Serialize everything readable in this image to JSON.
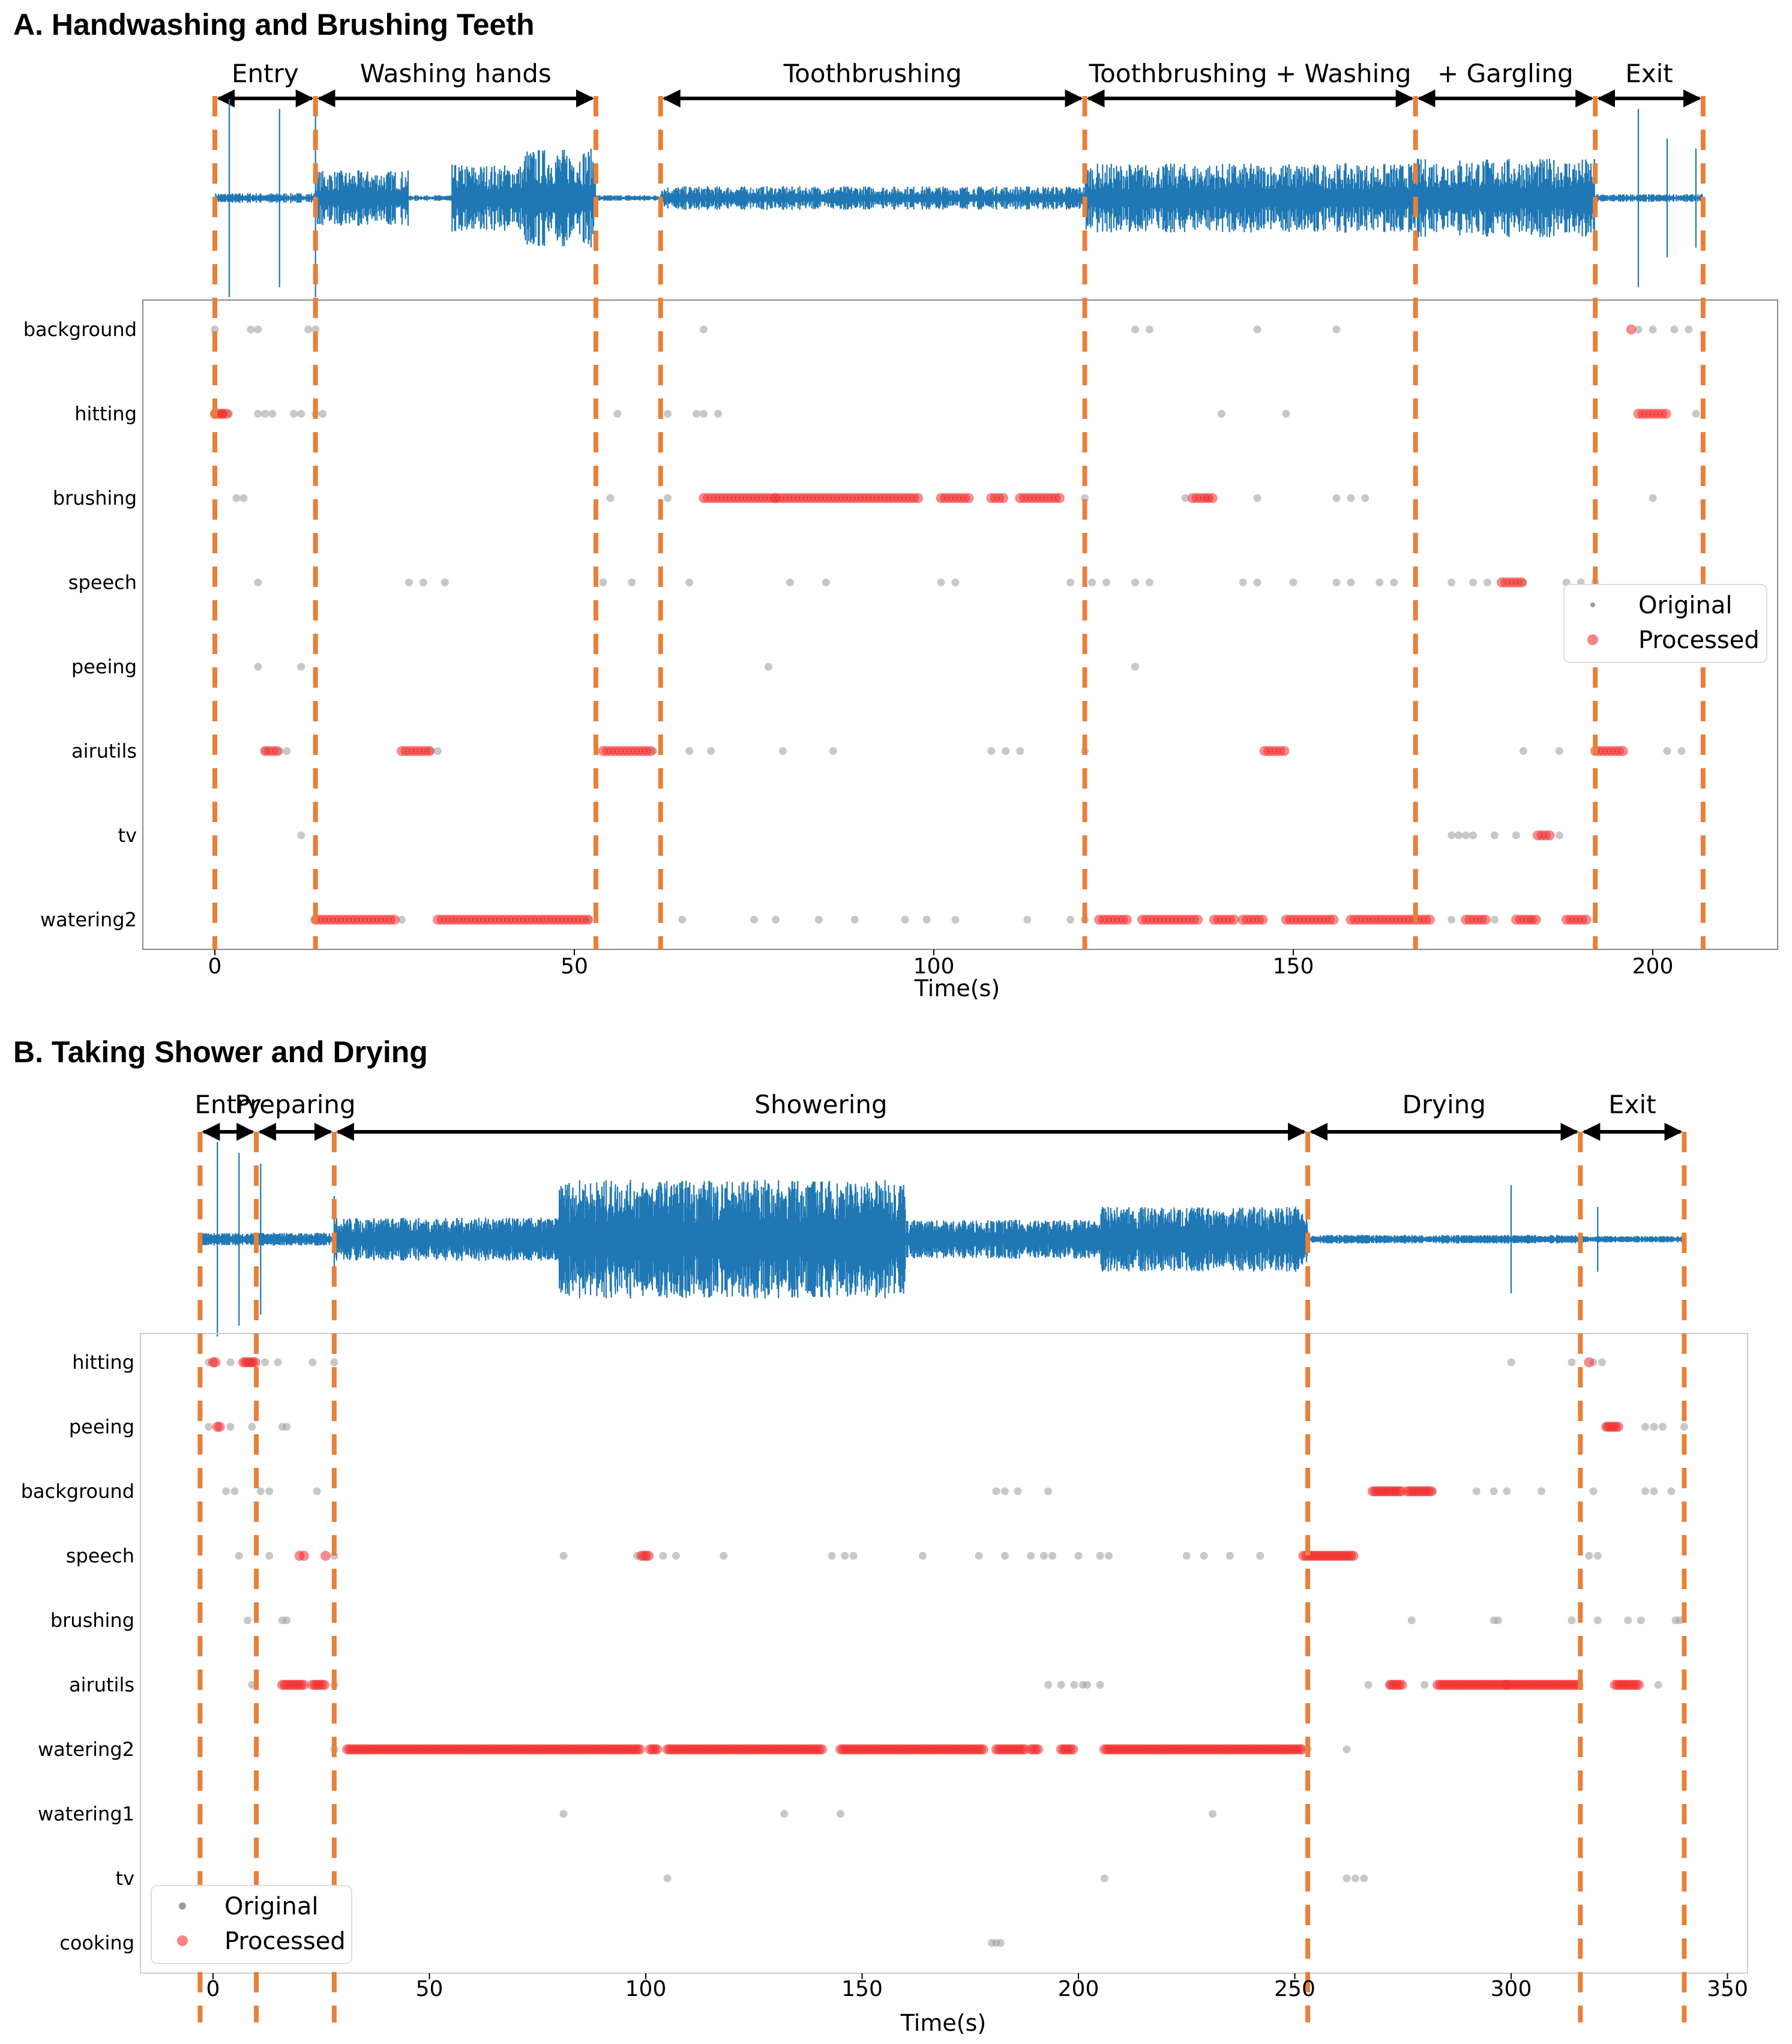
{
  "colors": {
    "wave": "#1f77b4",
    "boundary": "#e8803a",
    "original": "#9a9a9a",
    "processed": "#f23030",
    "arrow": "#000000"
  },
  "chart_data": [
    {
      "id": "A",
      "type": "scatter",
      "title": "A. Handwashing and Brushing Teeth",
      "xlabel": "Time(s)",
      "xlim": [
        -10,
        217
      ],
      "xticks": [
        0,
        50,
        100,
        150,
        200
      ],
      "categories": [
        "background",
        "hitting",
        "brushing",
        "speech",
        "peeing",
        "airutils",
        "tv",
        "watering2"
      ],
      "boundaries": [
        0,
        14,
        53,
        62,
        121,
        167,
        192,
        207
      ],
      "segments": [
        {
          "label": "Entry",
          "start": 0,
          "end": 14
        },
        {
          "label": "Washing hands",
          "start": 14,
          "end": 53
        },
        {
          "label": "Toothbrushing",
          "start": 62,
          "end": 121
        },
        {
          "label": "Toothbrushing + Washing",
          "start": 121,
          "end": 167
        },
        {
          "label": "+ Gargling",
          "start": 167,
          "end": 192
        },
        {
          "label": "Exit",
          "start": 192,
          "end": 207
        }
      ],
      "legend": {
        "original": "Original",
        "processed": "Processed",
        "position": "right"
      },
      "original": {
        "background": [
          0,
          5,
          6,
          13,
          14,
          68,
          128,
          130,
          145,
          156,
          198,
          200,
          203,
          205
        ],
        "hitting": [
          0,
          1,
          2,
          6,
          7,
          8,
          11,
          12,
          14,
          15,
          56,
          63,
          67,
          68,
          70,
          140,
          149,
          206
        ],
        "brushing": [
          3,
          4,
          55,
          63,
          121,
          135,
          138,
          145,
          156,
          158,
          160,
          200
        ],
        "speech": [
          6,
          27,
          29,
          32,
          54,
          58,
          66,
          80,
          85,
          101,
          103,
          119,
          122,
          124,
          128,
          130,
          143,
          145,
          150,
          156,
          158,
          162,
          164,
          172,
          175,
          177,
          182,
          188,
          190,
          192
        ],
        "peeing": [
          6,
          12,
          77,
          128
        ],
        "airutils": [
          7,
          9,
          10,
          30,
          31,
          61,
          66,
          69,
          79,
          86,
          108,
          110,
          112,
          121,
          182,
          187,
          202,
          204
        ],
        "tv": [
          12,
          172,
          173,
          174,
          175,
          178,
          181,
          187
        ],
        "watering2": [
          14,
          26,
          52,
          65,
          75,
          78,
          84,
          89,
          96,
          99,
          103,
          113,
          119,
          121,
          167,
          172,
          178,
          183
        ]
      },
      "processed": {
        "hitting": {
          "points": [
            1
          ],
          "ranges": [
            [
              0,
              2
            ],
            [
              198,
              202
            ]
          ]
        },
        "brushing": {
          "ranges": [
            [
              68,
              78
            ],
            [
              78,
              98
            ],
            [
              101,
              105
            ],
            [
              108,
              110
            ],
            [
              112,
              118
            ],
            [
              136,
              139
            ]
          ]
        },
        "speech": {
          "ranges": [
            [
              179,
              182
            ]
          ]
        },
        "airutils": {
          "ranges": [
            [
              7,
              9
            ],
            [
              26,
              30
            ],
            [
              54,
              61
            ],
            [
              146,
              149
            ],
            [
              192,
              196
            ]
          ]
        },
        "tv": {
          "ranges": [
            [
              184,
              186
            ]
          ]
        },
        "watering2": {
          "ranges": [
            [
              14,
              25
            ],
            [
              31,
              52
            ],
            [
              123,
              127
            ],
            [
              129,
              137
            ],
            [
              139,
              142
            ],
            [
              143,
              146
            ],
            [
              149,
              156
            ],
            [
              158,
              169
            ],
            [
              174,
              177
            ],
            [
              181,
              184
            ],
            [
              188,
              191
            ]
          ]
        },
        "background": {
          "points": [
            197
          ]
        }
      }
    },
    {
      "id": "B",
      "type": "scatter",
      "title": "B. Taking Shower and Drying",
      "xlabel": "Time(s)",
      "xlim": [
        -17,
        353
      ],
      "xticks": [
        0,
        50,
        100,
        150,
        200,
        250,
        300,
        350
      ],
      "categories": [
        "hitting",
        "peeing",
        "background",
        "speech",
        "brushing",
        "airutils",
        "watering2",
        "watering1",
        "tv",
        "cooking"
      ],
      "boundaries": [
        -3,
        10,
        28,
        253,
        316,
        340
      ],
      "segments": [
        {
          "label": "Entry",
          "start": -3,
          "end": 10
        },
        {
          "label": "Preparing",
          "start": 10,
          "end": 28
        },
        {
          "label": "Showering",
          "start": 28,
          "end": 253
        },
        {
          "label": "Drying",
          "start": 253,
          "end": 316
        },
        {
          "label": "Exit",
          "start": 316,
          "end": 340
        }
      ],
      "legend": {
        "original": "Original",
        "processed": "Processed",
        "position": "bottom-left"
      },
      "original": {
        "hitting": [
          -1,
          4,
          9,
          12,
          15,
          23,
          28,
          300,
          314,
          319,
          321
        ],
        "peeing": [
          -1,
          4,
          9,
          16,
          17,
          322,
          331,
          333,
          335,
          340
        ],
        "background": [
          3,
          5,
          11,
          13,
          24,
          181,
          183,
          186,
          193,
          271,
          273,
          282,
          292,
          296,
          299,
          307,
          319,
          331,
          333,
          337
        ],
        "speech": [
          6,
          13,
          28,
          81,
          98,
          104,
          107,
          118,
          143,
          146,
          148,
          164,
          177,
          183,
          189,
          192,
          194,
          200,
          205,
          207,
          225,
          229,
          235,
          242,
          318,
          320
        ],
        "brushing": [
          8,
          16,
          17,
          277,
          296,
          297,
          314,
          320,
          327,
          330,
          338,
          339
        ],
        "airutils": [
          9,
          28,
          193,
          196,
          199,
          201,
          202,
          205,
          267,
          272,
          280,
          326,
          334
        ],
        "watering2": [
          28,
          253,
          262
        ],
        "watering1": [
          81,
          132,
          145,
          231
        ],
        "tv": [
          105,
          206,
          262,
          264,
          266
        ],
        "cooking": [
          180,
          181,
          182
        ]
      },
      "processed": {
        "hitting": {
          "ranges": [
            [
              0,
              1
            ],
            [
              7,
              10
            ]
          ],
          "points": [
            318
          ]
        },
        "peeing": {
          "ranges": [
            [
              1,
              2
            ],
            [
              322,
              325
            ]
          ]
        },
        "background": {
          "ranges": [
            [
              268,
              275
            ],
            [
              276,
              282
            ]
          ]
        },
        "speech": {
          "points": [
            20,
            21,
            26
          ],
          "ranges": [
            [
              99,
              101
            ],
            [
              252,
              264
            ]
          ]
        },
        "airutils": {
          "ranges": [
            [
              16,
              21
            ],
            [
              23,
              26
            ],
            [
              272,
              275
            ],
            [
              283,
              299
            ],
            [
              299,
              316
            ],
            [
              324,
              330
            ]
          ]
        },
        "watering2": {
          "ranges": [
            [
              31,
              99
            ],
            [
              101,
              103
            ],
            [
              105,
              141
            ],
            [
              145,
              178
            ],
            [
              181,
              188
            ],
            [
              189,
              191
            ],
            [
              196,
              199
            ],
            [
              206,
              252
            ]
          ]
        }
      }
    }
  ]
}
